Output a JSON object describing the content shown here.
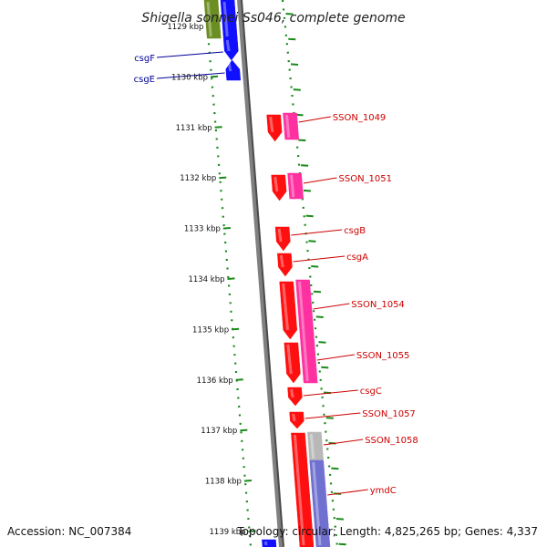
{
  "title": "Shigella sonnei Ss046, complete genome",
  "footer": {
    "accession": "Accession: NC_007384",
    "topology": "Topology: circular; Length: 4,825,265 bp; Genes: 4,337"
  },
  "colors": {
    "gene_red": "#ff1010",
    "gene_pink": "#ff30a0",
    "gene_blue": "#1010ff",
    "gene_green": "#6b8e23",
    "gene_gray": "#b8b8b8",
    "gene_slate": "#7070d0",
    "ruler_green": "#1a8a1a",
    "backbone": "#808080",
    "label_red": "#cc0000",
    "label_blue": "#000099"
  },
  "ticks": [
    {
      "kbp": 1129,
      "label": "1129 kbp"
    },
    {
      "kbp": 1130,
      "label": "1130 kbp"
    },
    {
      "kbp": 1131,
      "label": "1131 kbp"
    },
    {
      "kbp": 1132,
      "label": "1132 kbp"
    },
    {
      "kbp": 1133,
      "label": "1133 kbp"
    },
    {
      "kbp": 1134,
      "label": "1134 kbp"
    },
    {
      "kbp": 1135,
      "label": "1135 kbp"
    },
    {
      "kbp": 1136,
      "label": "1136 kbp"
    },
    {
      "kbp": 1137,
      "label": "1137 kbp"
    },
    {
      "kbp": 1138,
      "label": "1138 kbp"
    },
    {
      "kbp": 1139,
      "label": "1139 kbp"
    }
  ],
  "labels": [
    {
      "name": "csgF",
      "side": "left",
      "color": "blue"
    },
    {
      "name": "csgE",
      "side": "left",
      "color": "blue"
    },
    {
      "name": "SSON_1049",
      "side": "right",
      "color": "red"
    },
    {
      "name": "SSON_1051",
      "side": "right",
      "color": "red"
    },
    {
      "name": "csgB",
      "side": "right",
      "color": "red"
    },
    {
      "name": "csgA",
      "side": "right",
      "color": "red"
    },
    {
      "name": "SSON_1054",
      "side": "right",
      "color": "red"
    },
    {
      "name": "SSON_1055",
      "side": "right",
      "color": "red"
    },
    {
      "name": "csgC",
      "side": "right",
      "color": "red"
    },
    {
      "name": "SSON_1057",
      "side": "right",
      "color": "red"
    },
    {
      "name": "SSON_1058",
      "side": "right",
      "color": "red"
    },
    {
      "name": "ymdC",
      "side": "right",
      "color": "red"
    }
  ]
}
